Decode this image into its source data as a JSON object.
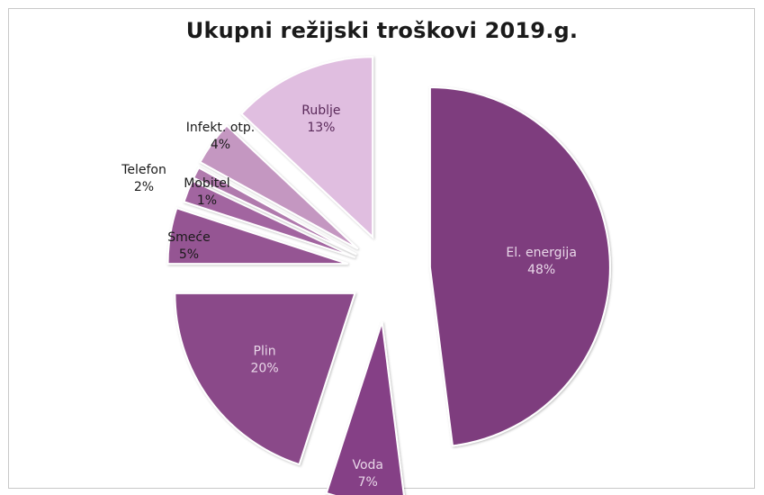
{
  "chart_data": {
    "type": "pie",
    "title": "Ukupni režijski troškovi 2019.g.",
    "exploded": true,
    "slices": [
      {
        "label": "El. energija",
        "percent": "48%",
        "value": 48,
        "color": "#7e3d7e",
        "label_color": "#e8d6e8"
      },
      {
        "label": "Voda",
        "percent": "7%",
        "value": 7,
        "color": "#853f86",
        "label_color": "#e8d6e8"
      },
      {
        "label": "Plin",
        "percent": "20%",
        "value": 20,
        "color": "#8a4a89",
        "label_color": "#e8d6e8"
      },
      {
        "label": "Smeće",
        "percent": "5%",
        "value": 5,
        "color": "#955493",
        "label_color": "#1a1a1a"
      },
      {
        "label": "Telefon",
        "percent": "2%",
        "value": 2,
        "color": "#a265a0",
        "label_color": "#1a1a1a"
      },
      {
        "label": "Mobitel",
        "percent": "1%",
        "value": 1,
        "color": "#b07aad",
        "label_color": "#1a1a1a"
      },
      {
        "label": "Infekt. otp.",
        "percent": "4%",
        "value": 4,
        "color": "#c497c1",
        "label_color": "#1a1a1a"
      },
      {
        "label": "Rublje",
        "percent": "13%",
        "value": 13,
        "color": "#e0bee0",
        "label_color": "#5a2a5a"
      }
    ]
  }
}
